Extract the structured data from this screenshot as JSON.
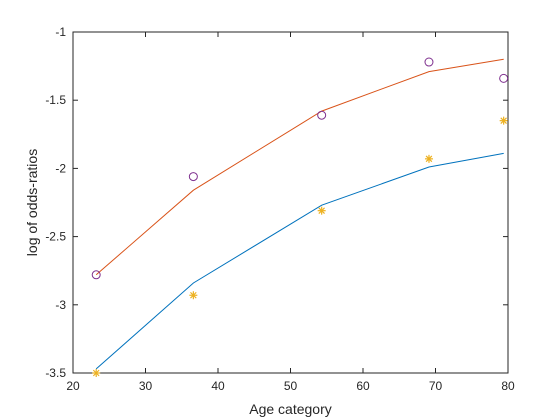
{
  "chart_data": {
    "type": "line",
    "title": "",
    "xlabel": "Age category",
    "ylabel": "log of odds-ratios",
    "xlim": [
      20,
      80
    ],
    "ylim": [
      -3.5,
      -1
    ],
    "xticks": [
      20,
      30,
      40,
      50,
      60,
      70,
      80
    ],
    "yticks": [
      -3.5,
      -3,
      -2.5,
      -2,
      -1.5,
      -1
    ],
    "grid": false,
    "legend": "none",
    "series": [
      {
        "kind": "line",
        "color": "#D95319",
        "x": [
          23.2,
          36.6,
          54.3,
          69.1,
          79.4
        ],
        "y": [
          -2.78,
          -2.16,
          -1.58,
          -1.29,
          -1.2
        ]
      },
      {
        "kind": "marker",
        "marker": "circle",
        "color": "#7E2F8E",
        "x": [
          23.2,
          36.6,
          54.3,
          69.1,
          79.4
        ],
        "y": [
          -2.78,
          -2.06,
          -1.61,
          -1.22,
          -1.34
        ]
      },
      {
        "kind": "line",
        "color": "#0072BD",
        "x": [
          23.2,
          36.6,
          54.3,
          69.1,
          79.4
        ],
        "y": [
          -3.47,
          -2.84,
          -2.27,
          -1.99,
          -1.89
        ]
      },
      {
        "kind": "marker",
        "marker": "asterisk",
        "color": "#EDB120",
        "x": [
          23.2,
          36.6,
          54.3,
          69.1,
          79.4
        ],
        "y": [
          -3.5,
          -2.93,
          -2.31,
          -1.93,
          -1.65
        ]
      }
    ]
  }
}
